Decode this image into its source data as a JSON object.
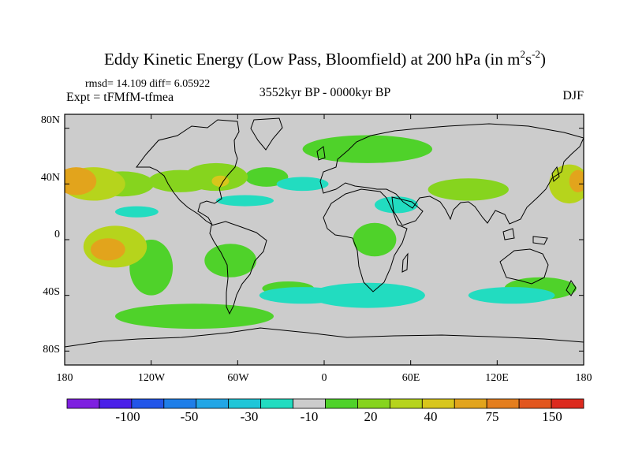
{
  "chart_data": {
    "type": "heatmap",
    "title": "Eddy Kinetic Energy (Low Pass, Bloomfield) at 200 hPa (in m",
    "title_unit_sup1": "2",
    "title_unit_mid": "s",
    "title_unit_sup2": "-2",
    "title_unit_close": ")",
    "stats": "rmsd= 14.109 diff= 6.05922",
    "experiment": "Expt = tFMfM-tfmea",
    "period": "3552kyr BP - 0000kyr BP",
    "season": "DJF",
    "x_ticks": [
      "180",
      "120W",
      "60W",
      "0",
      "60E",
      "120E",
      "180"
    ],
    "y_ticks": [
      "80N",
      "40N",
      "0",
      "40S",
      "80S"
    ],
    "x_range": [
      -180,
      180
    ],
    "y_range": [
      -90,
      90
    ],
    "colorbar": {
      "colors": [
        "#7e1fe0",
        "#4a1fe8",
        "#2255e8",
        "#1e7ee8",
        "#22a6e6",
        "#1fc6d8",
        "#22dcc0",
        "#cccccc",
        "#4fd22a",
        "#86d41e",
        "#b6d41c",
        "#d8c61c",
        "#e2a41c",
        "#e47e1e",
        "#e2561e",
        "#dc2a1e"
      ],
      "labels": [
        "-100",
        "-50",
        "-30",
        "-10",
        "20",
        "40",
        "75",
        "150"
      ]
    },
    "anomaly_regions": [
      {
        "lon": -160,
        "lat": 40,
        "rx": 22,
        "ry": 12,
        "level": 3
      },
      {
        "lon": -172,
        "lat": 42,
        "rx": 14,
        "ry": 10,
        "level": 5
      },
      {
        "lon": -140,
        "lat": 40,
        "rx": 22,
        "ry": 9,
        "level": 2
      },
      {
        "lon": -100,
        "lat": 42,
        "rx": 22,
        "ry": 8,
        "level": 2
      },
      {
        "lon": -75,
        "lat": 45,
        "rx": 22,
        "ry": 10,
        "level": 2
      },
      {
        "lon": -72,
        "lat": 42,
        "rx": 6,
        "ry": 4,
        "level": 4
      },
      {
        "lon": -40,
        "lat": 45,
        "rx": 15,
        "ry": 7,
        "level": 1
      },
      {
        "lon": 100,
        "lat": 36,
        "rx": 28,
        "ry": 8,
        "level": 2
      },
      {
        "lon": 170,
        "lat": 40,
        "rx": 14,
        "ry": 14,
        "level": 3
      },
      {
        "lon": 176,
        "lat": 42,
        "rx": 6,
        "ry": 8,
        "level": 5
      },
      {
        "lon": -145,
        "lat": -5,
        "rx": 22,
        "ry": 15,
        "level": 3
      },
      {
        "lon": -150,
        "lat": -7,
        "rx": 12,
        "ry": 8,
        "level": 5
      },
      {
        "lon": -120,
        "lat": -20,
        "rx": 15,
        "ry": 20,
        "level": 1
      },
      {
        "lon": -65,
        "lat": -15,
        "rx": 18,
        "ry": 12,
        "level": 1
      },
      {
        "lon": -25,
        "lat": -35,
        "rx": 18,
        "ry": 5,
        "level": 1
      },
      {
        "lon": -90,
        "lat": -55,
        "rx": 55,
        "ry": 9,
        "level": 1
      },
      {
        "lon": 150,
        "lat": -35,
        "rx": 25,
        "ry": 8,
        "level": 1
      },
      {
        "lon": 35,
        "lat": 0,
        "rx": 15,
        "ry": 12,
        "level": 1
      },
      {
        "lon": 30,
        "lat": 65,
        "rx": 45,
        "ry": 10,
        "level": 1
      },
      {
        "lon": -15,
        "lat": 40,
        "rx": 18,
        "ry": 5,
        "level": -1
      },
      {
        "lon": -55,
        "lat": 28,
        "rx": 20,
        "ry": 4,
        "level": -1
      },
      {
        "lon": -130,
        "lat": 20,
        "rx": 15,
        "ry": 4,
        "level": -1
      },
      {
        "lon": 50,
        "lat": 25,
        "rx": 15,
        "ry": 6,
        "level": -1
      },
      {
        "lon": -15,
        "lat": -40,
        "rx": 30,
        "ry": 6,
        "level": -1
      },
      {
        "lon": 30,
        "lat": -40,
        "rx": 40,
        "ry": 9,
        "level": -1
      },
      {
        "lon": 130,
        "lat": -40,
        "rx": 30,
        "ry": 6,
        "level": -1
      }
    ]
  }
}
